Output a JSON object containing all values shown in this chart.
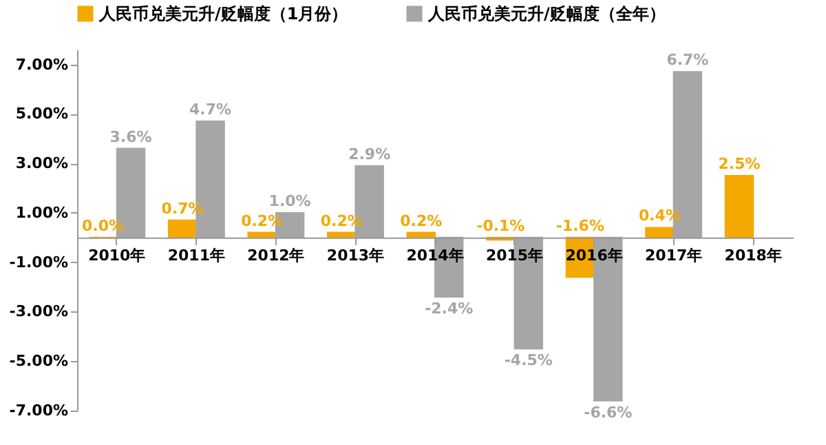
{
  "chart_data": {
    "type": "bar",
    "categories": [
      "2010年",
      "2011年",
      "2012年",
      "2013年",
      "2014年",
      "2015年",
      "2016年",
      "2017年",
      "2018年"
    ],
    "series": [
      {
        "name": "人民币兑美元升/贬幅度（1月份）",
        "color": "#f5a800",
        "values": [
          0.0,
          0.7,
          0.2,
          0.2,
          0.2,
          -0.1,
          -1.6,
          0.4,
          2.5
        ],
        "value_labels": [
          "0.0%",
          "0.7%",
          "0.2%",
          "0.2%",
          "0.2%",
          "-0.1%",
          "-1.6%",
          "0.4%",
          "2.5%"
        ]
      },
      {
        "name": "人民币兑美元升/贬幅度（全年）",
        "color": "#a6a6a6",
        "values": [
          3.6,
          4.7,
          1.0,
          2.9,
          -2.4,
          -4.5,
          -6.6,
          6.7,
          null
        ],
        "value_labels": [
          "3.6%",
          "4.7%",
          "1.0%",
          "2.9%",
          "-2.4%",
          "-4.5%",
          "-6.6%",
          "6.7%",
          null
        ]
      }
    ],
    "ylim": [
      -7,
      7.6
    ],
    "yticks": [
      {
        "value": -7,
        "label": "-7.00%"
      },
      {
        "value": -5,
        "label": "-5.00%"
      },
      {
        "value": -3,
        "label": "-3.00%"
      },
      {
        "value": -1,
        "label": "-1.00%"
      },
      {
        "value": 1,
        "label": "1.00%"
      },
      {
        "value": 3,
        "label": "3.00%"
      },
      {
        "value": 5,
        "label": "5.00%"
      },
      {
        "value": 7,
        "label": "7.00%"
      }
    ],
    "grid": false,
    "legend": "top"
  }
}
